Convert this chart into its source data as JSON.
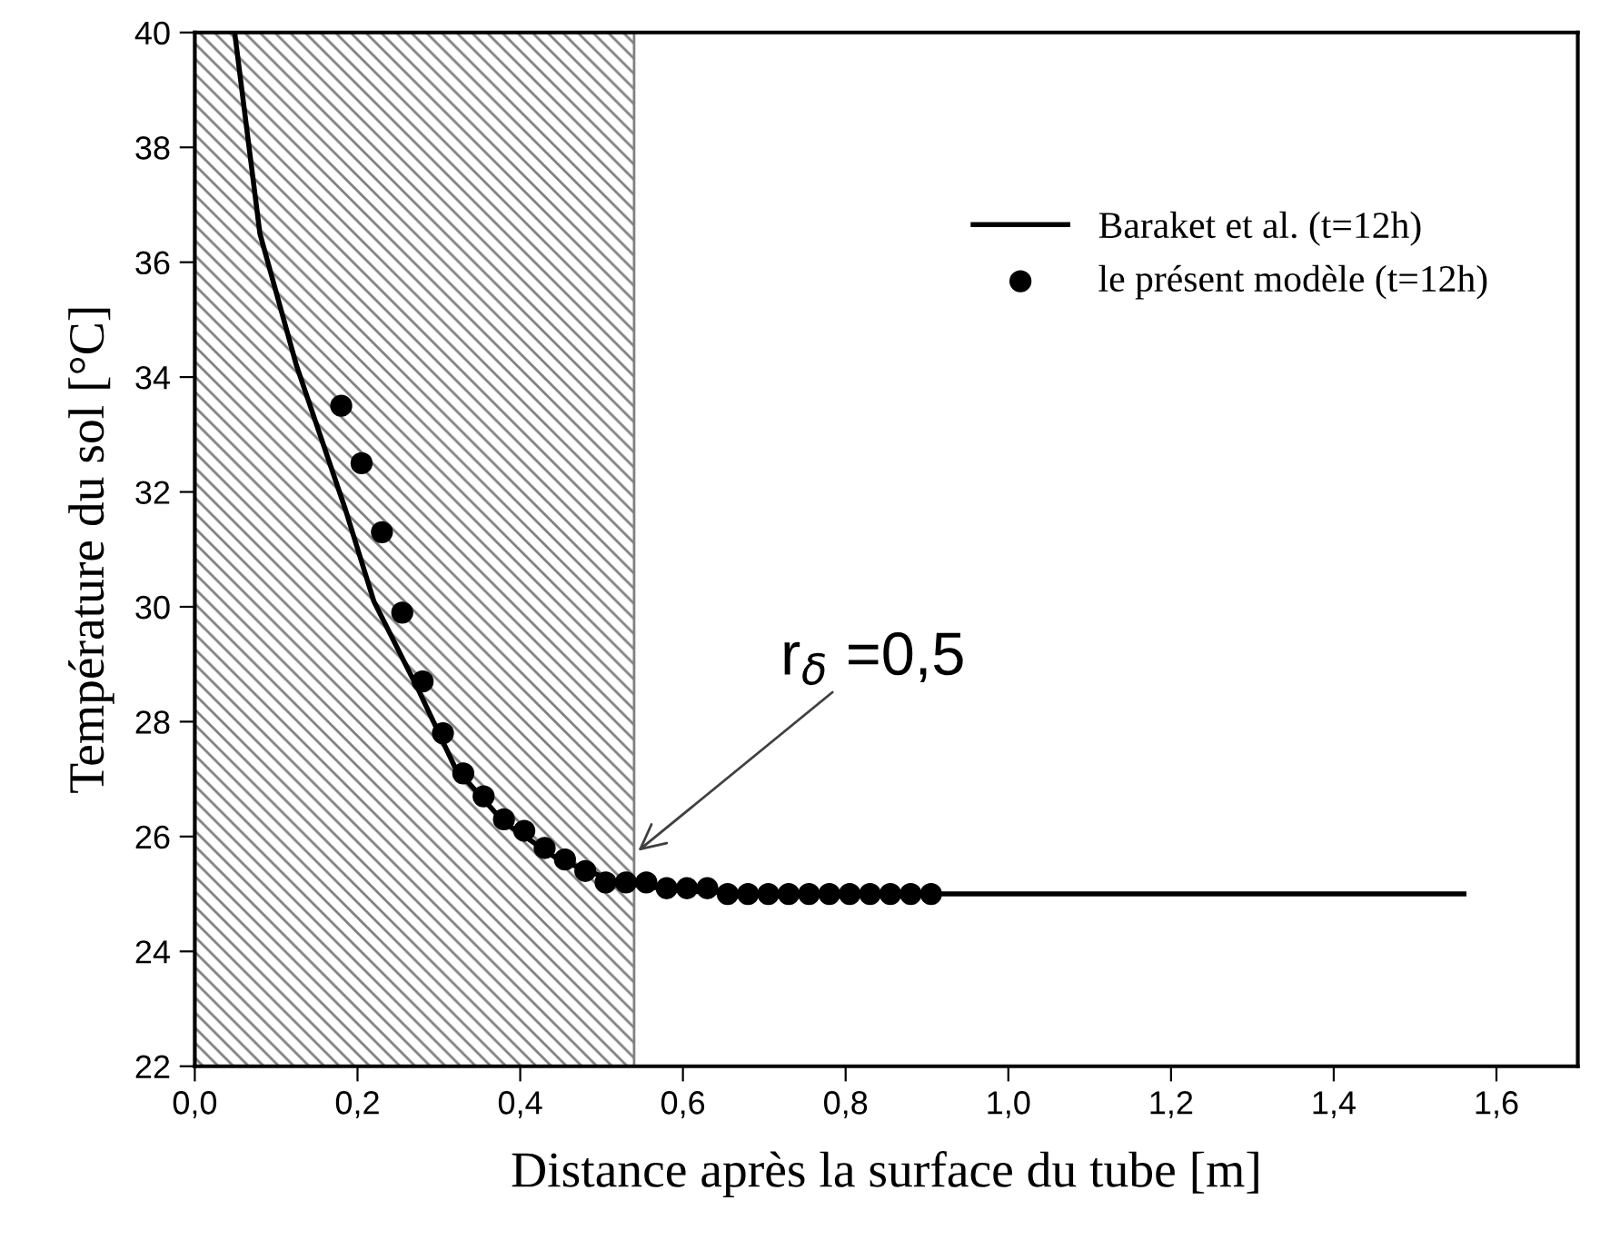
{
  "chart_data": {
    "type": "line",
    "xlabel": "Distance après la surface du tube [m]",
    "ylabel": "Température du sol [°C]",
    "xlim": [
      0,
      1.7
    ],
    "ylim": [
      22,
      40
    ],
    "xticks": [
      {
        "value": 0,
        "label": "0,0"
      },
      {
        "value": 0.2,
        "label": "0,2"
      },
      {
        "value": 0.4,
        "label": "0,4"
      },
      {
        "value": 0.6,
        "label": "0,6"
      },
      {
        "value": 0.8,
        "label": "0,8"
      },
      {
        "value": 1.0,
        "label": "1,0"
      },
      {
        "value": 1.2,
        "label": "1,2"
      },
      {
        "value": 1.4,
        "label": "1,4"
      },
      {
        "value": 1.6,
        "label": "1,6"
      }
    ],
    "yticks": [
      22,
      24,
      26,
      28,
      30,
      32,
      34,
      36,
      38,
      40
    ],
    "series": [
      {
        "name": "Baraket et al. (t=12h)",
        "color": "#000000",
        "marker": "none",
        "line_style": "solid",
        "x": [
          0.049,
          0.08,
          0.125,
          0.185,
          0.22,
          0.275,
          0.32,
          0.38,
          0.447,
          0.52,
          0.6,
          0.7,
          1.56
        ],
        "values": [
          40,
          36.5,
          34.2,
          31.7,
          30.1,
          28.55,
          27.2,
          26.25,
          25.6,
          25.2,
          25.05,
          25.0,
          25.0
        ]
      },
      {
        "name": "le présent modèle (t=12h)",
        "type": "scatter",
        "color": "#000000",
        "marker": "circle",
        "x": [
          0.18,
          0.205,
          0.23,
          0.255,
          0.28,
          0.305,
          0.33,
          0.355,
          0.38,
          0.405,
          0.43,
          0.455,
          0.48,
          0.505,
          0.53,
          0.555,
          0.58,
          0.605,
          0.63,
          0.655,
          0.68,
          0.705,
          0.73,
          0.755,
          0.78,
          0.805,
          0.83,
          0.855,
          0.88,
          0.905
        ],
        "values": [
          33.5,
          32.5,
          31.3,
          29.9,
          28.7,
          27.8,
          27.1,
          26.7,
          26.3,
          26.1,
          25.8,
          25.6,
          25.4,
          25.2,
          25.2,
          25.2,
          25.1,
          25.1,
          25.1,
          25.0,
          25.0,
          25.0,
          25.0,
          25.0,
          25.0,
          25.0,
          25.0,
          25.0,
          25.0,
          25.0
        ]
      }
    ],
    "bands": [
      {
        "axis": "x",
        "from": 0,
        "to": 0.54,
        "color": "#808080"
      }
    ],
    "annotations": [
      {
        "text": "r$_{δ}$ =0,5",
        "x": 0.545,
        "y": 25.75
      }
    ],
    "legend": "top right",
    "grid": false
  }
}
